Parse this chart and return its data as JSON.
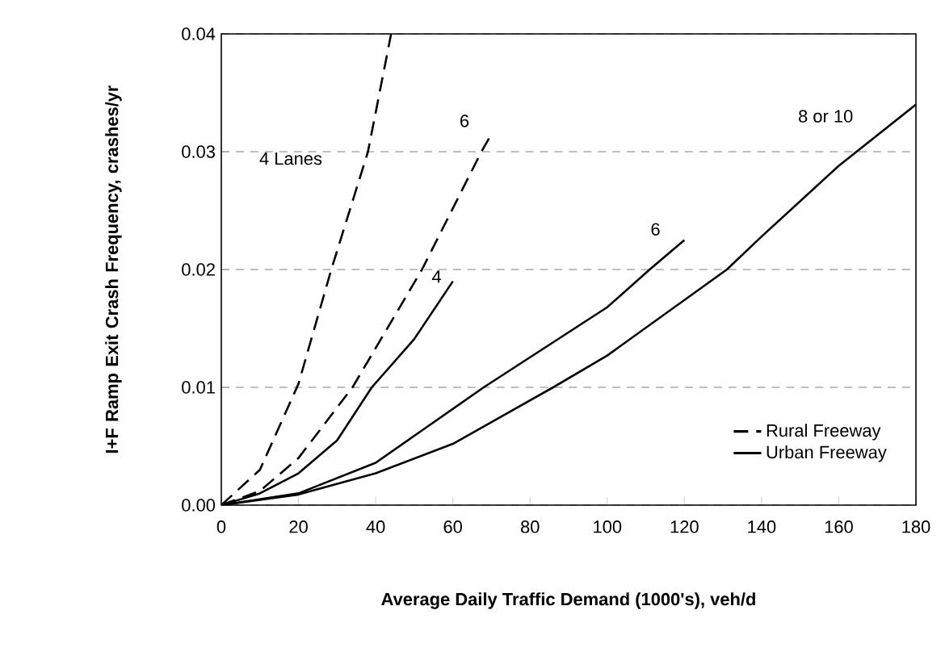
{
  "chart_data": {
    "type": "line",
    "xlabel": "Average Daily Traffic Demand (1000's), veh/d",
    "ylabel": "I+F Ramp Exit Crash Frequency, crashes/yr",
    "xlim": [
      0,
      180
    ],
    "xticks": [
      0,
      20,
      40,
      60,
      80,
      100,
      120,
      140,
      160,
      180
    ],
    "ylim": [
      0,
      0.04
    ],
    "yticks": [
      {
        "value": 0,
        "label": "0.00"
      },
      {
        "value": 0.01,
        "label": "0.01"
      },
      {
        "value": 0.02,
        "label": "0.02"
      },
      {
        "value": 0.03,
        "label": "0.03"
      },
      {
        "value": 0.04,
        "label": "0.04"
      }
    ],
    "grid": "y",
    "legend": "bottom right",
    "marker": "none",
    "series": [
      {
        "name": "Rural Freeway",
        "color": "#000000",
        "line_style": "dashed",
        "x": [
          0,
          10,
          20,
          28.5,
          38,
          44
        ],
        "values": [
          0,
          0.003,
          0.0103,
          0.02,
          0.03,
          0.04
        ]
      },
      {
        "color": "#000000",
        "line_style": "dashed",
        "x": [
          0,
          10,
          20,
          34,
          52,
          67.4,
          70
        ],
        "values": [
          0,
          0.0012,
          0.004,
          0.01,
          0.02,
          0.03,
          0.0315
        ]
      },
      {
        "name": "Urban Freeway",
        "color": "#000000",
        "line_style": "solid",
        "x": [
          0,
          10,
          20,
          30,
          39,
          50,
          60
        ],
        "values": [
          0,
          0.001,
          0.0027,
          0.0055,
          0.01,
          0.0141,
          0.019
        ]
      },
      {
        "color": "#000000",
        "line_style": "solid",
        "x": [
          0,
          20,
          40,
          68,
          100,
          111,
          120
        ],
        "values": [
          0,
          0.001,
          0.0036,
          0.01,
          0.0168,
          0.02,
          0.0225
        ]
      },
      {
        "color": "#000000",
        "line_style": "solid",
        "x": [
          0,
          20,
          40,
          60,
          86,
          100,
          131,
          140,
          160,
          180
        ],
        "values": [
          0,
          0.0009,
          0.0027,
          0.0052,
          0.01,
          0.0127,
          0.02,
          0.0228,
          0.0288,
          0.034
        ]
      }
    ],
    "annotations": [
      "4 Lanes",
      "6",
      "4",
      "6",
      "8 or 10"
    ]
  }
}
